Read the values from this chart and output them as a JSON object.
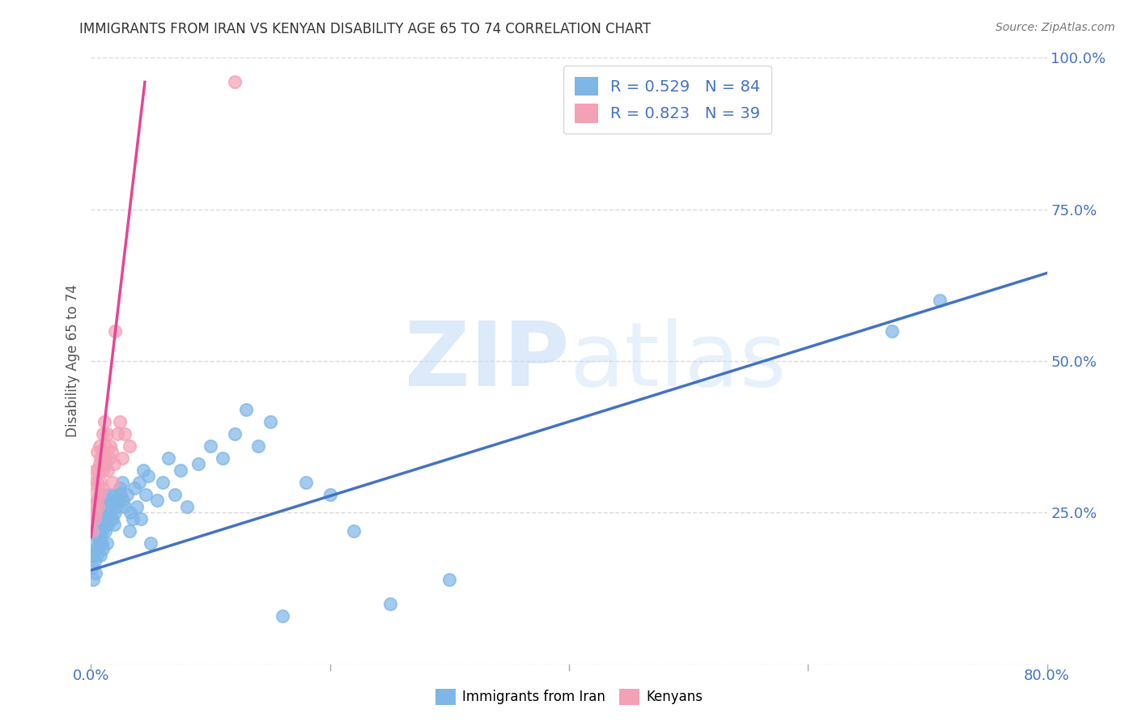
{
  "title": "IMMIGRANTS FROM IRAN VS KENYAN DISABILITY AGE 65 TO 74 CORRELATION CHART",
  "source": "Source: ZipAtlas.com",
  "ylabel": "Disability Age 65 to 74",
  "xlim": [
    0.0,
    0.8
  ],
  "ylim": [
    0.0,
    1.0
  ],
  "legend_R1": "R = 0.529",
  "legend_N1": "N = 84",
  "legend_R2": "R = 0.823",
  "legend_N2": "N = 39",
  "color_iran": "#7eb6e8",
  "color_kenya": "#f4a0b5",
  "line_color_iran": "#4472c4",
  "line_color_kenya": "#e84393",
  "background_color": "#ffffff",
  "grid_color": "#d0d0d0",
  "iran_x": [
    0.001,
    0.002,
    0.002,
    0.003,
    0.003,
    0.003,
    0.004,
    0.004,
    0.005,
    0.005,
    0.005,
    0.006,
    0.006,
    0.006,
    0.007,
    0.007,
    0.007,
    0.008,
    0.008,
    0.008,
    0.008,
    0.009,
    0.009,
    0.009,
    0.01,
    0.01,
    0.01,
    0.011,
    0.011,
    0.012,
    0.012,
    0.013,
    0.013,
    0.014,
    0.014,
    0.015,
    0.015,
    0.016,
    0.016,
    0.017,
    0.018,
    0.019,
    0.02,
    0.021,
    0.022,
    0.023,
    0.024,
    0.025,
    0.026,
    0.027,
    0.028,
    0.03,
    0.032,
    0.033,
    0.035,
    0.036,
    0.038,
    0.04,
    0.042,
    0.044,
    0.046,
    0.048,
    0.05,
    0.055,
    0.06,
    0.065,
    0.07,
    0.075,
    0.08,
    0.09,
    0.1,
    0.11,
    0.12,
    0.13,
    0.14,
    0.15,
    0.16,
    0.18,
    0.2,
    0.22,
    0.25,
    0.3,
    0.67,
    0.71
  ],
  "iran_y": [
    0.16,
    0.18,
    0.14,
    0.2,
    0.17,
    0.22,
    0.15,
    0.19,
    0.21,
    0.18,
    0.24,
    0.19,
    0.23,
    0.25,
    0.2,
    0.22,
    0.26,
    0.21,
    0.24,
    0.18,
    0.27,
    0.22,
    0.25,
    0.2,
    0.23,
    0.26,
    0.19,
    0.24,
    0.28,
    0.22,
    0.25,
    0.2,
    0.27,
    0.23,
    0.26,
    0.25,
    0.28,
    0.24,
    0.27,
    0.26,
    0.24,
    0.23,
    0.25,
    0.28,
    0.26,
    0.27,
    0.29,
    0.28,
    0.3,
    0.27,
    0.26,
    0.28,
    0.22,
    0.25,
    0.24,
    0.29,
    0.26,
    0.3,
    0.24,
    0.32,
    0.28,
    0.31,
    0.2,
    0.27,
    0.3,
    0.34,
    0.28,
    0.32,
    0.26,
    0.33,
    0.36,
    0.34,
    0.38,
    0.42,
    0.36,
    0.4,
    0.08,
    0.3,
    0.28,
    0.22,
    0.1,
    0.14,
    0.55,
    0.6
  ],
  "kenya_x": [
    0.001,
    0.002,
    0.002,
    0.003,
    0.003,
    0.004,
    0.004,
    0.005,
    0.005,
    0.005,
    0.006,
    0.006,
    0.007,
    0.007,
    0.007,
    0.008,
    0.008,
    0.009,
    0.009,
    0.01,
    0.01,
    0.011,
    0.011,
    0.012,
    0.012,
    0.013,
    0.014,
    0.015,
    0.016,
    0.017,
    0.018,
    0.019,
    0.02,
    0.022,
    0.024,
    0.026,
    0.028,
    0.032,
    0.12
  ],
  "kenya_y": [
    0.22,
    0.26,
    0.3,
    0.24,
    0.28,
    0.25,
    0.32,
    0.27,
    0.3,
    0.35,
    0.26,
    0.32,
    0.28,
    0.33,
    0.36,
    0.3,
    0.34,
    0.29,
    0.35,
    0.32,
    0.38,
    0.34,
    0.4,
    0.36,
    0.33,
    0.38,
    0.32,
    0.34,
    0.36,
    0.35,
    0.3,
    0.33,
    0.55,
    0.38,
    0.4,
    0.34,
    0.38,
    0.36,
    0.96
  ],
  "iran_line_x": [
    0.0,
    0.8
  ],
  "iran_line_y": [
    0.155,
    0.645
  ],
  "kenya_line_x": [
    0.0,
    0.045
  ],
  "kenya_line_y": [
    0.21,
    0.96
  ]
}
